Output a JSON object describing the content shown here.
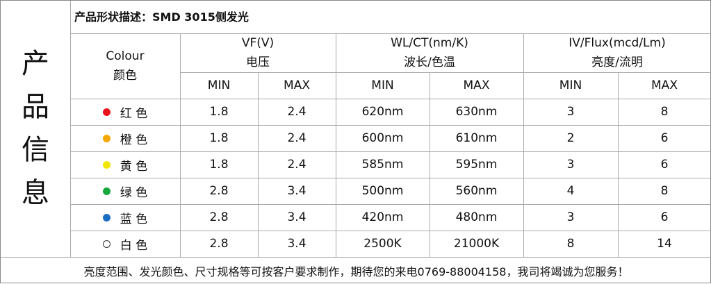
{
  "side_label": "产品信息",
  "title": "产品形状描述：SMD 3015侧发光",
  "table": {
    "headers": [
      {
        "en": "Colour",
        "zh": "颜色"
      },
      {
        "en": "VF(V)",
        "zh": "电压"
      },
      {
        "en": "WL/CT(nm/K)",
        "zh": "波长/色温"
      },
      {
        "en": "IV/Flux(mcd/Lm)",
        "zh": "亮度/流明"
      }
    ],
    "subheaders": [
      "MIN",
      "MAX",
      "MIN",
      "MAX",
      "MIN",
      "MAX"
    ],
    "rows": [
      {
        "color": "#e8141b",
        "cells": [
          "红 色",
          "1.8",
          "2.4",
          "620nm",
          "630nm",
          "3",
          "8"
        ]
      },
      {
        "color": "#f5a800",
        "cells": [
          "橙 色",
          "1.8",
          "2.4",
          "600nm",
          "610nm",
          "2",
          "6"
        ]
      },
      {
        "color": "#f2e600",
        "cells": [
          "黄 色",
          "1.8",
          "2.4",
          "585nm",
          "595nm",
          "3",
          "6"
        ]
      },
      {
        "color": "#16a83c",
        "cells": [
          "绿 色",
          "2.8",
          "3.4",
          "500nm",
          "560nm",
          "4",
          "8"
        ]
      },
      {
        "color": "#1a6fc4",
        "cells": [
          "蓝 色",
          "2.8",
          "3.4",
          "420nm",
          "480nm",
          "3",
          "6"
        ]
      },
      {
        "color": "#ffffff",
        "cells": [
          "白 色",
          "2.8",
          "3.4",
          "2500K",
          "21000K",
          "8",
          "14"
        ]
      }
    ]
  },
  "footer": "亮度范围、发光颜色、尺寸规格等可按客户要求制作，期待您的来电0769-88004158，我司将竭诚为您服务！"
}
